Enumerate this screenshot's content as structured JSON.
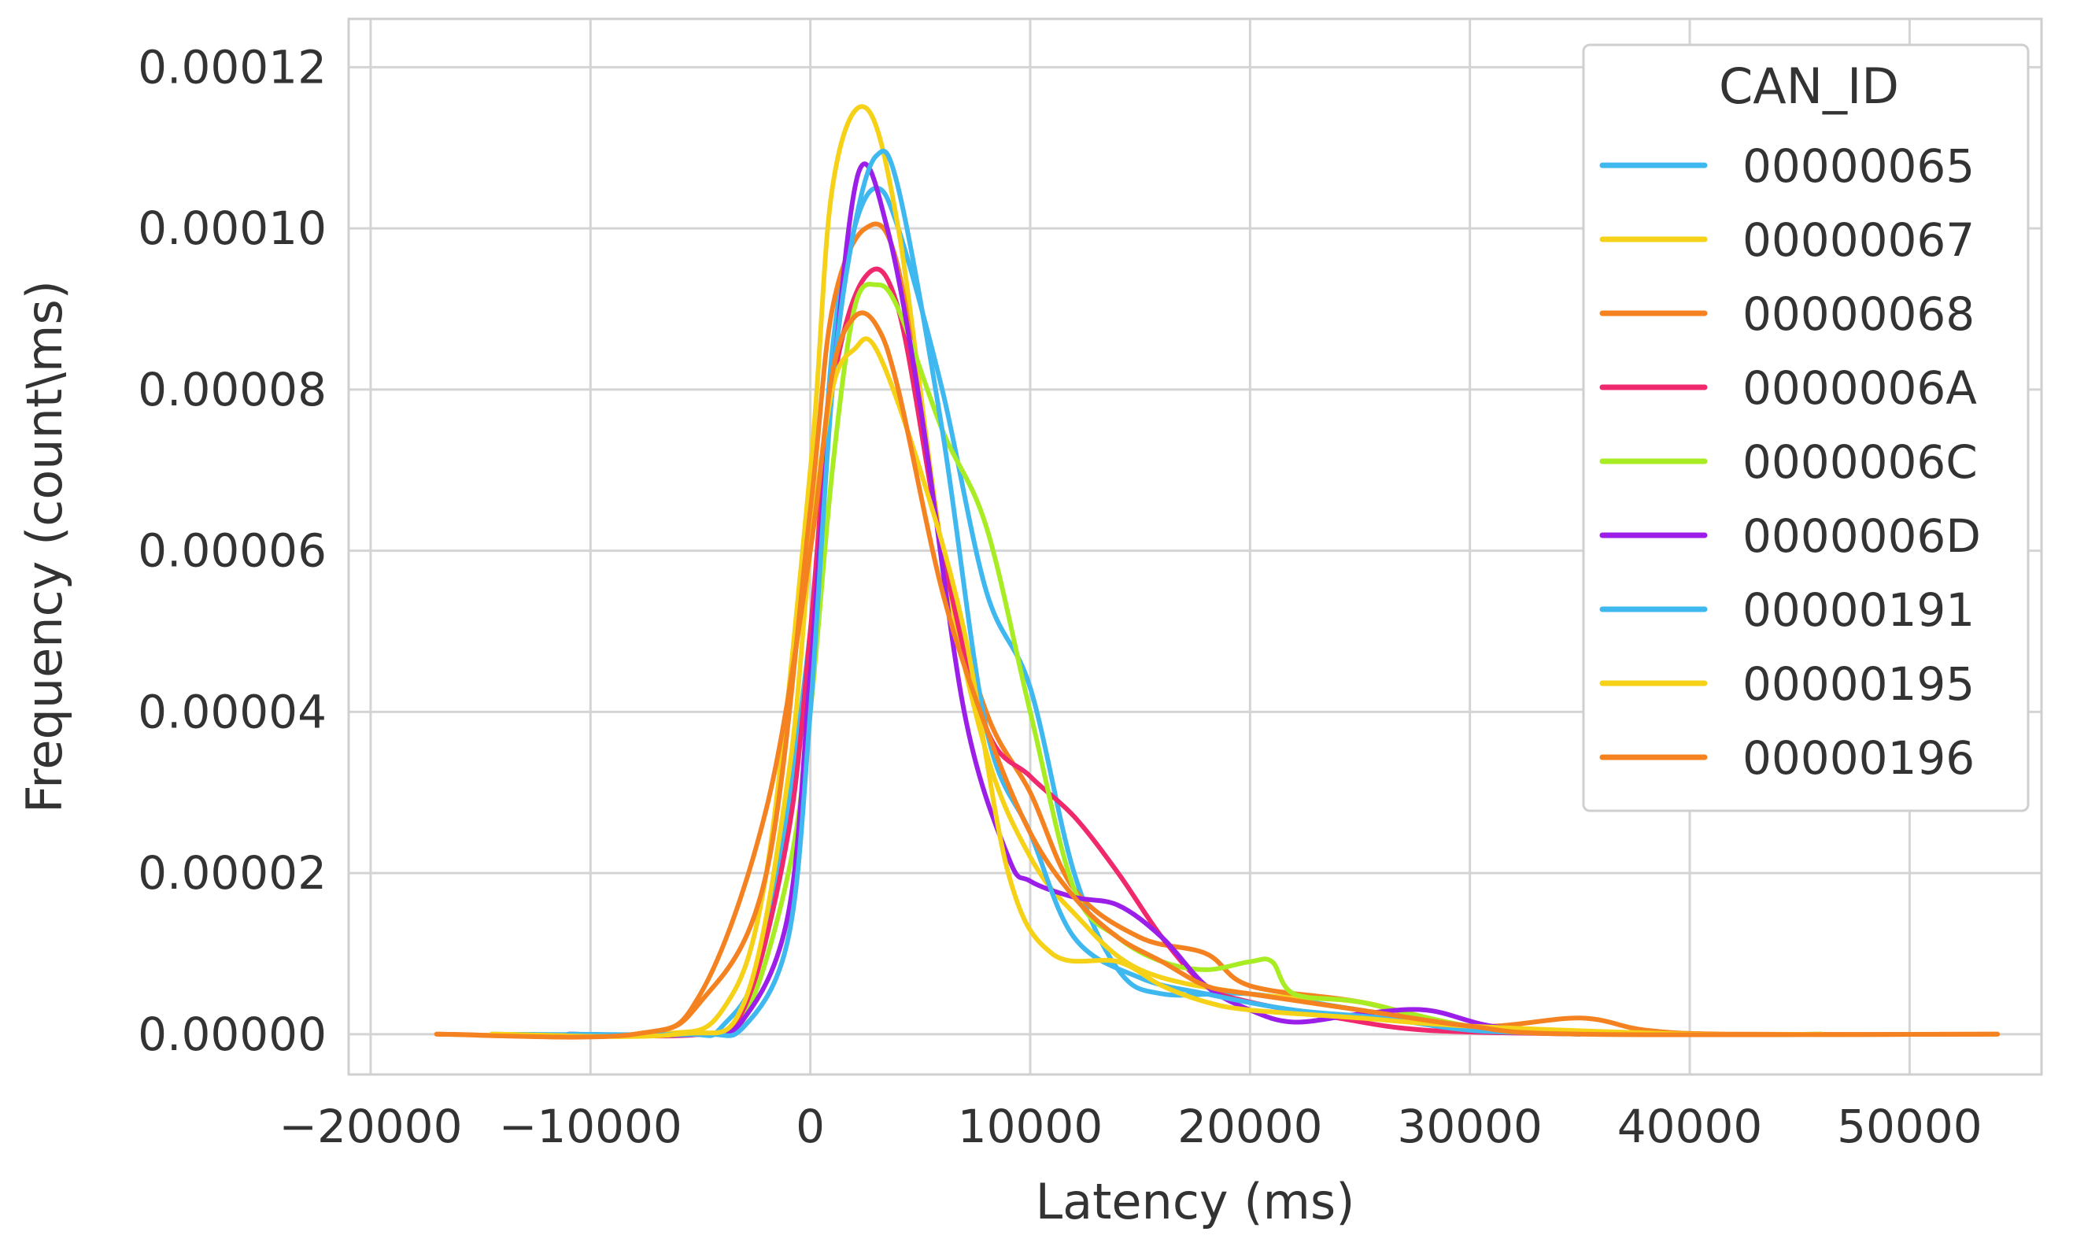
{
  "chart_data": {
    "type": "line",
    "xlabel": "Latency (ms)",
    "ylabel": "Frequency (count\\ms)",
    "xlim": [
      -21000,
      56000
    ],
    "ylim": [
      -5e-06,
      0.000126
    ],
    "xticks": [
      -20000,
      -10000,
      0,
      10000,
      20000,
      30000,
      40000,
      50000
    ],
    "xtick_labels": [
      "−20000",
      "−10000",
      "0",
      "10000",
      "20000",
      "30000",
      "40000",
      "50000"
    ],
    "yticks": [
      0,
      2e-05,
      4e-05,
      6e-05,
      8e-05,
      0.0001,
      0.00012
    ],
    "ytick_labels": [
      "0.00000",
      "0.00002",
      "0.00004",
      "0.00006",
      "0.00008",
      "0.00010",
      "0.00012"
    ],
    "grid": true,
    "legend": {
      "title": "CAN_ID",
      "placement": "top-right"
    },
    "series": [
      {
        "name": "00000065",
        "color": "#3fb8f0",
        "x": [
          -14500,
          -6000,
          -4000,
          -2000,
          0,
          1000,
          2000,
          3000,
          4000,
          6000,
          8000,
          10000,
          12000,
          14000,
          16000,
          20000,
          25000,
          30000,
          40000,
          46000
        ],
        "y": [
          0,
          0,
          1e-06,
          1.2e-05,
          5e-05,
          8.5e-05,
          0.0001,
          0.000105,
          0.0001,
          8e-05,
          5.5e-05,
          4.3e-05,
          2e-05,
          8e-06,
          5e-06,
          5e-06,
          3e-06,
          1e-06,
          0,
          0
        ]
      },
      {
        "name": "00000067",
        "color": "#f5d218",
        "x": [
          -14500,
          -7000,
          -4000,
          -2000,
          0,
          1000,
          2500,
          4000,
          6000,
          8000,
          10000,
          12000,
          15000,
          20000,
          25000,
          30000,
          40000,
          46000
        ],
        "y": [
          0,
          0,
          3e-06,
          2e-05,
          7e-05,
          0.000105,
          0.000115,
          0.0001,
          6e-05,
          3.5e-05,
          2.2e-05,
          1.5e-05,
          8e-06,
          5e-06,
          4e-06,
          1e-06,
          0,
          0
        ]
      },
      {
        "name": "00000068",
        "color": "#f58220",
        "x": [
          -17000,
          -8000,
          -5000,
          -2000,
          0,
          1000,
          2500,
          4000,
          6000,
          8000,
          10000,
          12000,
          15000,
          18000,
          20000,
          25000,
          30000,
          35000,
          38000,
          42000,
          54000
        ],
        "y": [
          0,
          0,
          4e-06,
          2e-05,
          6.5e-05,
          9e-05,
          0.0001,
          9.5e-05,
          6e-05,
          4e-05,
          3e-05,
          1.8e-05,
          1.2e-05,
          1e-05,
          6e-06,
          4e-06,
          1e-06,
          2e-06,
          5e-07,
          0,
          0
        ]
      },
      {
        "name": "0000006A",
        "color": "#f0286e",
        "x": [
          -11000,
          -5000,
          -3000,
          -1000,
          0,
          1000,
          2500,
          4000,
          6000,
          8000,
          10000,
          12000,
          14000,
          16000,
          18000,
          20000,
          24000,
          28000,
          35000
        ],
        "y": [
          0,
          0,
          3e-06,
          2.5e-05,
          5e-05,
          8e-05,
          9.4e-05,
          9e-05,
          6e-05,
          3.8e-05,
          3.2e-05,
          2.7e-05,
          2e-05,
          1.2e-05,
          6e-06,
          4e-06,
          2e-06,
          5e-07,
          0
        ]
      },
      {
        "name": "0000006C",
        "color": "#a8ec24",
        "x": [
          -11000,
          -5000,
          -3000,
          -1000,
          0,
          1000,
          2000,
          3000,
          4000,
          6000,
          8000,
          10000,
          12000,
          14000,
          16000,
          18000,
          20000,
          21000,
          22000,
          25000,
          30000,
          35000
        ],
        "y": [
          0,
          0,
          2e-06,
          2e-05,
          4e-05,
          7e-05,
          9e-05,
          9.3e-05,
          9e-05,
          7.5e-05,
          6.3e-05,
          4e-05,
          1.8e-05,
          1.2e-05,
          9e-06,
          8e-06,
          9e-06,
          9e-06,
          5e-06,
          4e-06,
          1e-06,
          0
        ]
      },
      {
        "name": "0000006D",
        "color": "#9b1fe8",
        "x": [
          -11000,
          -5000,
          -3000,
          -1000,
          0,
          1000,
          2200,
          3500,
          5000,
          7000,
          9000,
          10000,
          12000,
          14000,
          16000,
          18000,
          20000,
          22000,
          25000,
          28000,
          31000,
          35000
        ],
        "y": [
          0,
          0,
          2e-06,
          1.5e-05,
          4.5e-05,
          8e-05,
          0.000107,
          0.0001,
          7.8e-05,
          4e-05,
          2.2e-05,
          1.9e-05,
          1.7e-05,
          1.6e-05,
          1.2e-05,
          6e-06,
          3e-06,
          1.5e-06,
          2.5e-06,
          3e-06,
          1e-06,
          0
        ]
      },
      {
        "name": "00000191",
        "color": "#3fb8f0",
        "x": [
          -11000,
          -5000,
          -3000,
          -1000,
          0,
          1000,
          2000,
          3000,
          4000,
          6000,
          8000,
          10000,
          12000,
          15000,
          18000,
          22000,
          26000,
          30000,
          35000
        ],
        "y": [
          0,
          0,
          1e-06,
          1.2e-05,
          4e-05,
          8e-05,
          0.0001,
          0.000109,
          0.000105,
          7.5e-05,
          3.8e-05,
          2.5e-05,
          1.2e-05,
          7e-06,
          5e-06,
          3e-06,
          2e-06,
          5e-07,
          0
        ]
      },
      {
        "name": "00000195",
        "color": "#f5d218",
        "x": [
          -14500,
          -6000,
          -3000,
          -1000,
          0,
          1000,
          2000,
          3000,
          5000,
          7000,
          9000,
          11000,
          14000,
          16000,
          18000,
          20000,
          25000,
          30000,
          40000,
          46000
        ],
        "y": [
          0,
          0,
          4e-06,
          3.2e-05,
          6e-05,
          8e-05,
          8.5e-05,
          8.5e-05,
          7e-05,
          5e-05,
          2e-05,
          1e-05,
          9e-06,
          6e-06,
          4e-06,
          3e-06,
          2e-06,
          1e-06,
          0,
          0
        ]
      },
      {
        "name": "00000196",
        "color": "#f58220",
        "x": [
          -17000,
          -8000,
          -5000,
          -2000,
          0,
          1000,
          2000,
          3000,
          4000,
          6000,
          8000,
          10000,
          12000,
          14000,
          16000,
          18000,
          20000,
          25000,
          30000,
          35000,
          54000
        ],
        "y": [
          0,
          0,
          5e-06,
          2.8e-05,
          6e-05,
          8.2e-05,
          8.9e-05,
          8.8e-05,
          8e-05,
          5.5e-05,
          3.8e-05,
          2.5e-05,
          1.7e-05,
          1.2e-05,
          9e-06,
          6e-06,
          5e-06,
          3e-06,
          1e-06,
          0,
          0
        ]
      }
    ]
  }
}
